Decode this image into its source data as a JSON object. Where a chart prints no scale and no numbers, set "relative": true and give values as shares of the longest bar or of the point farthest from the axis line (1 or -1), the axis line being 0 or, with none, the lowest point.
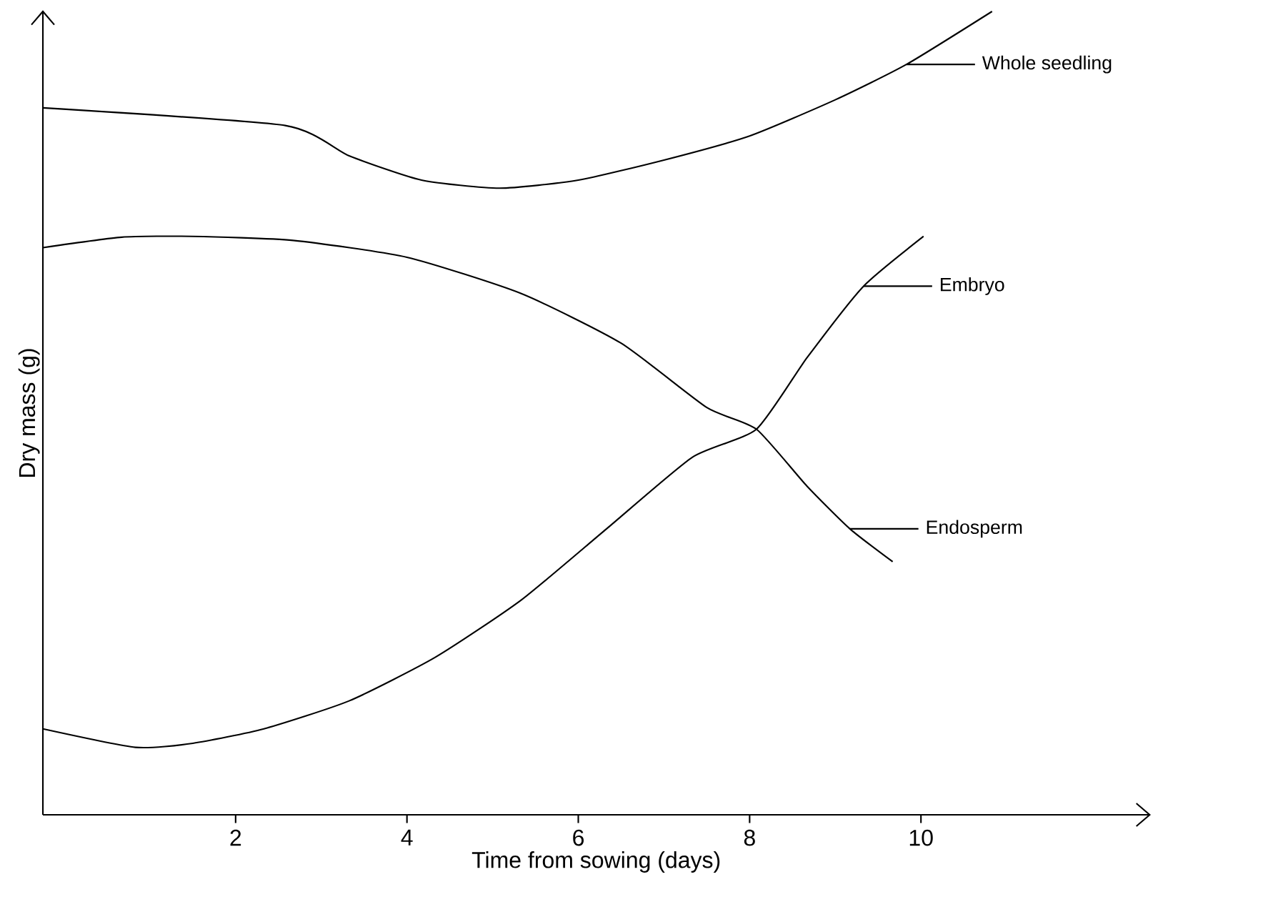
{
  "chart_data": {
    "type": "line",
    "xlabel": "Time from sowing (days)",
    "ylabel": "Dry mass (g)",
    "relative": true,
    "xlim": [
      -0.25,
      12.67
    ],
    "xticks": [
      2,
      4,
      6,
      8,
      10
    ],
    "grid": false,
    "legend": "right",
    "marker": "none",
    "line_style": "solid",
    "series": [
      {
        "name": "Whole seedling",
        "color": "#000000",
        "x": [
          -0.25,
          2.58,
          3.33,
          4.17,
          5.08,
          6,
          7,
          8,
          9,
          9.83,
          10.83
        ],
        "values": [
          0.88,
          0.858,
          0.82,
          0.79,
          0.78,
          0.79,
          0.815,
          0.845,
          0.89,
          0.934,
          1.0
        ]
      },
      {
        "name": "Embryo",
        "color": "#000000",
        "x": [
          -0.25,
          0.83,
          1.5,
          2.33,
          3.33,
          4.33,
          5.33,
          6.33,
          7.33,
          8.08,
          8.67,
          9.33,
          10.03
        ],
        "values": [
          0.107,
          0.084,
          0.089,
          0.107,
          0.142,
          0.196,
          0.267,
          0.356,
          0.445,
          0.48,
          0.569,
          0.658,
          0.72
        ]
      },
      {
        "name": "Endosperm",
        "color": "#000000",
        "x": [
          -0.25,
          0.67,
          1.5,
          2.67,
          4,
          5.33,
          6.5,
          7.5,
          8.08,
          8.67,
          9.17,
          9.67
        ],
        "values": [
          0.706,
          0.719,
          0.72,
          0.715,
          0.694,
          0.649,
          0.587,
          0.507,
          0.48,
          0.409,
          0.356,
          0.315
        ]
      }
    ]
  }
}
